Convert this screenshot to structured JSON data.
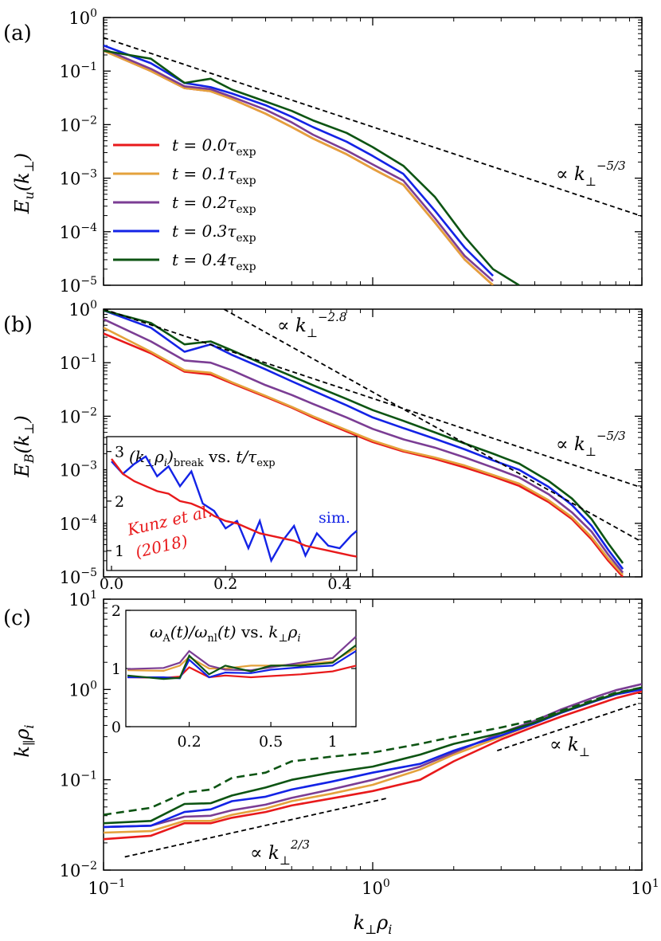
{
  "colors": {
    "t0": "#e8191b",
    "t1": "#e4a23c",
    "t2": "#7b3d94",
    "t3": "#1323e6",
    "t4": "#0d5413",
    "ref": "#000000",
    "inset_sim": "#1323e6",
    "inset_kunz": "#e8191b"
  },
  "chart_data": [
    {
      "panel": "(a)",
      "type": "line",
      "xscale": "log",
      "yscale": "log",
      "xlim": [
        0.1,
        10
      ],
      "ylim": [
        1e-05,
        1
      ],
      "ylabel": "E_u(k_⊥)",
      "yticks": [
        "10^0",
        "10^-1",
        "10^-2",
        "10^-3",
        "10^-4",
        "10^-5"
      ],
      "x": [
        0.1,
        0.15,
        0.2,
        0.25,
        0.3,
        0.4,
        0.5,
        0.6,
        0.8,
        1.0,
        1.3,
        1.7,
        2.2,
        2.8,
        3.5,
        4.2
      ],
      "series": [
        {
          "name": "t = 0.0τexp",
          "values": [
            0.24,
            0.1,
            0.048,
            0.042,
            0.03,
            0.016,
            0.009,
            0.0055,
            0.0028,
            0.0015,
            0.00075,
            0.00015,
            3e-05,
            1e-05,
            null,
            null
          ]
        },
        {
          "name": "t = 0.1τexp",
          "values": [
            0.24,
            0.1,
            0.048,
            0.042,
            0.03,
            0.016,
            0.009,
            0.0055,
            0.0028,
            0.0015,
            0.00075,
            0.00015,
            3e-05,
            1e-05,
            null,
            null
          ]
        },
        {
          "name": "t = 0.2τexp",
          "values": [
            0.26,
            0.11,
            0.052,
            0.046,
            0.033,
            0.019,
            0.011,
            0.0065,
            0.0033,
            0.0018,
            0.0009,
            0.00018,
            3.5e-05,
            1.2e-05,
            null,
            null
          ]
        },
        {
          "name": "t = 0.3τexp",
          "values": [
            0.3,
            0.14,
            0.06,
            0.05,
            0.038,
            0.023,
            0.014,
            0.009,
            0.0048,
            0.0026,
            0.0012,
            0.00025,
            5e-05,
            1.5e-05,
            null,
            null
          ]
        },
        {
          "name": "t = 0.4τexp",
          "values": [
            0.24,
            0.17,
            0.06,
            0.072,
            0.045,
            0.027,
            0.018,
            0.012,
            0.007,
            0.0038,
            0.0017,
            0.00045,
            8e-05,
            2e-05,
            1e-05,
            null
          ]
        }
      ],
      "reference_lines": [
        {
          "label": "∝ k_⊥^(-5/3)",
          "slope": -1.6667,
          "x": [
            0.1,
            10
          ],
          "y0": 0.42
        }
      ]
    },
    {
      "panel": "(b)",
      "type": "line",
      "xscale": "log",
      "yscale": "log",
      "xlim": [
        0.1,
        10
      ],
      "ylim": [
        1e-05,
        1
      ],
      "ylabel": "E_B(k_⊥)",
      "yticks": [
        "10^0",
        "10^-1",
        "10^-2",
        "10^-3",
        "10^-4",
        "10^-5"
      ],
      "x": [
        0.1,
        0.15,
        0.2,
        0.25,
        0.3,
        0.4,
        0.5,
        0.6,
        0.8,
        1.0,
        1.3,
        1.7,
        2.2,
        2.8,
        3.5,
        4.5,
        5.5,
        6.5,
        7.5,
        8.5
      ],
      "series": [
        {
          "name": "t = 0.0τexp",
          "values": [
            0.35,
            0.15,
            0.068,
            0.06,
            0.041,
            0.023,
            0.0145,
            0.0095,
            0.0052,
            0.0033,
            0.0022,
            0.0016,
            0.0011,
            0.00075,
            0.0005,
            0.00025,
            0.00012,
            5e-05,
            2e-05,
            1e-05
          ]
        },
        {
          "name": "t = 0.1τexp",
          "values": [
            0.45,
            0.16,
            0.072,
            0.065,
            0.043,
            0.024,
            0.015,
            0.01,
            0.0055,
            0.0035,
            0.0023,
            0.0017,
            0.0012,
            0.0008,
            0.00055,
            0.00027,
            0.00013,
            5.5e-05,
            2.2e-05,
            1.1e-05
          ]
        },
        {
          "name": "t = 0.2τexp",
          "values": [
            0.65,
            0.25,
            0.11,
            0.1,
            0.072,
            0.038,
            0.025,
            0.017,
            0.0095,
            0.0058,
            0.0037,
            0.0026,
            0.0017,
            0.0011,
            0.00072,
            0.00035,
            0.00016,
            7e-05,
            2.6e-05,
            1.2e-05
          ]
        },
        {
          "name": "t = 0.3τexp",
          "values": [
            0.95,
            0.45,
            0.16,
            0.22,
            0.14,
            0.075,
            0.045,
            0.03,
            0.016,
            0.0095,
            0.006,
            0.0038,
            0.0024,
            0.0015,
            0.001,
            0.00048,
            0.00022,
            9e-05,
            3.2e-05,
            1.4e-05
          ]
        },
        {
          "name": "t = 0.4τexp",
          "values": [
            0.95,
            0.55,
            0.22,
            0.25,
            0.17,
            0.09,
            0.056,
            0.038,
            0.021,
            0.013,
            0.0082,
            0.005,
            0.0031,
            0.002,
            0.0013,
            0.00062,
            0.00029,
            0.00012,
            4.2e-05,
            1.8e-05
          ]
        }
      ],
      "reference_lines": [
        {
          "label": "∝ k_⊥^(-2.8)",
          "slope": -2.8,
          "x": [
            0.28,
            10
          ],
          "y0_at_x": 1.0
        },
        {
          "label": "∝ k_⊥^(-5/3)",
          "slope": -1.6667,
          "x": [
            0.1,
            10
          ],
          "y0": 1.0
        }
      ],
      "inset": {
        "title": "(k_⊥ρ_i)_break vs. t/τ_exp",
        "xlim": [
          0,
          0.43
        ],
        "ylim": [
          0.6,
          3.3
        ],
        "xticks": [
          "0.0",
          "0.2",
          "0.4"
        ],
        "yticks": [
          "1",
          "2",
          "3"
        ],
        "labels": {
          "sim": "sim.",
          "kunz_line1": "Kunz et al.",
          "kunz_line2": "(2018)"
        },
        "t": [
          0,
          0.02,
          0.04,
          0.06,
          0.08,
          0.1,
          0.12,
          0.14,
          0.16,
          0.18,
          0.2,
          0.22,
          0.24,
          0.26,
          0.28,
          0.3,
          0.32,
          0.34,
          0.36,
          0.38,
          0.4,
          0.42,
          0.43
        ],
        "sim": [
          2.8,
          2.55,
          2.75,
          2.9,
          2.5,
          2.7,
          2.3,
          2.6,
          1.95,
          1.8,
          1.45,
          1.6,
          1.05,
          1.6,
          0.8,
          1.2,
          1.5,
          0.9,
          1.35,
          1.1,
          1.05,
          1.3,
          1.4
        ],
        "kunz": [
          2.85,
          2.55,
          2.4,
          2.3,
          2.2,
          2.15,
          2.0,
          1.95,
          1.85,
          1.7,
          1.6,
          1.55,
          1.45,
          1.35,
          1.3,
          1.25,
          1.2,
          1.1,
          1.05,
          1.0,
          0.95,
          0.9,
          0.88
        ]
      }
    },
    {
      "panel": "(c)",
      "type": "line",
      "xscale": "log",
      "yscale": "log",
      "xlim": [
        0.1,
        10
      ],
      "ylim": [
        0.01,
        10
      ],
      "xlabel": "k_⊥ρ_i",
      "ylabel": "k_∥ρ_i",
      "xticks": [
        "10^-1",
        "10^0",
        "10^1"
      ],
      "yticks": [
        "10^1",
        "10^0",
        "10^-1",
        "10^-2"
      ],
      "x": [
        0.1,
        0.15,
        0.2,
        0.25,
        0.3,
        0.4,
        0.5,
        0.7,
        1.0,
        1.5,
        2.0,
        3.0,
        4.0,
        5.0,
        6.5,
        8.0,
        10
      ],
      "series": [
        {
          "name": "t = 0.0τexp",
          "values": [
            0.022,
            0.024,
            0.033,
            0.033,
            0.038,
            0.044,
            0.052,
            0.062,
            0.075,
            0.1,
            0.16,
            0.28,
            0.39,
            0.5,
            0.65,
            0.8,
            0.95
          ]
        },
        {
          "name": "t = 0.1τexp",
          "values": [
            0.026,
            0.027,
            0.035,
            0.035,
            0.041,
            0.048,
            0.058,
            0.07,
            0.088,
            0.13,
            0.19,
            0.3,
            0.42,
            0.55,
            0.72,
            0.88,
            1.02
          ]
        },
        {
          "name": "t = 0.2τexp",
          "values": [
            0.03,
            0.031,
            0.039,
            0.04,
            0.046,
            0.053,
            0.063,
            0.078,
            0.1,
            0.14,
            0.2,
            0.33,
            0.45,
            0.6,
            0.8,
            0.98,
            1.15
          ]
        },
        {
          "name": "t = 0.3τexp",
          "values": [
            0.03,
            0.031,
            0.044,
            0.047,
            0.058,
            0.065,
            0.078,
            0.095,
            0.12,
            0.15,
            0.21,
            0.31,
            0.42,
            0.55,
            0.72,
            0.88,
            1.0
          ]
        },
        {
          "name": "t = 0.4τexp",
          "values": [
            0.033,
            0.035,
            0.054,
            0.055,
            0.067,
            0.082,
            0.1,
            0.12,
            0.14,
            0.19,
            0.25,
            0.33,
            0.43,
            0.56,
            0.73,
            0.9,
            1.05
          ]
        },
        {
          "name": "t = 0.4τexp (dashed)",
          "values": [
            0.041,
            0.049,
            0.072,
            0.078,
            0.105,
            0.12,
            0.16,
            0.18,
            0.2,
            0.25,
            0.3,
            0.38,
            0.46,
            0.58,
            0.75,
            0.92,
            1.05
          ]
        }
      ],
      "reference_lines": [
        {
          "label": "∝ k_⊥^(2/3)",
          "slope": 0.6667,
          "x": [
            0.12,
            1.15
          ],
          "y0": 0.014
        },
        {
          "label": "∝ k_⊥",
          "slope": 1,
          "x": [
            2.9,
            9.5
          ],
          "y0": 0.21
        }
      ],
      "inset": {
        "title": "ω_A(t)/ω_nl(t) vs. k_⊥ρ_i",
        "xscale": "log",
        "xlim": [
          0.1,
          1.3
        ],
        "ylim": [
          0,
          2
        ],
        "xticks": [
          "0.2",
          "0.5",
          "1"
        ],
        "yticks": [
          "0",
          "1",
          "2"
        ],
        "x": [
          0.1,
          0.15,
          0.18,
          0.2,
          0.25,
          0.3,
          0.4,
          0.5,
          0.7,
          1.0,
          1.3
        ],
        "series": [
          {
            "name": "t = 0.0τexp",
            "values": [
              0.85,
              0.84,
              0.86,
              1.02,
              0.85,
              0.88,
              0.85,
              0.87,
              0.9,
              0.95,
              1.05
            ]
          },
          {
            "name": "t = 0.1τexp",
            "values": [
              0.97,
              0.96,
              1.05,
              1.2,
              1.0,
              1.0,
              1.05,
              1.05,
              1.07,
              1.12,
              1.35
            ]
          },
          {
            "name": "t = 0.2τexp",
            "values": [
              0.99,
              1.01,
              1.1,
              1.3,
              1.05,
              0.98,
              0.97,
              1.02,
              1.1,
              1.18,
              1.55
            ]
          },
          {
            "name": "t = 0.3τexp",
            "values": [
              0.85,
              0.85,
              0.83,
              1.15,
              0.85,
              0.93,
              0.92,
              0.98,
              1.02,
              1.05,
              1.3
            ]
          },
          {
            "name": "t = 0.4τexp",
            "values": [
              0.88,
              0.82,
              0.84,
              1.22,
              0.9,
              1.05,
              0.95,
              1.05,
              1.05,
              1.1,
              1.4
            ]
          }
        ]
      }
    }
  ],
  "legend": [
    {
      "label": "t = 0.0τexp",
      "color_key": "t0"
    },
    {
      "label": "t = 0.1τexp",
      "color_key": "t1"
    },
    {
      "label": "t = 0.2τexp",
      "color_key": "t2"
    },
    {
      "label": "t = 0.3τexp",
      "color_key": "t3"
    },
    {
      "label": "t = 0.4τexp",
      "color_key": "t4"
    }
  ],
  "panel_labels": [
    "(a)",
    "(b)",
    "(c)"
  ],
  "annotations": {
    "a_slope": "∝ k⊥−5/3",
    "b_slope_steep": "∝ k⊥−2.8",
    "b_slope": "∝ k⊥−5/3",
    "c_slope_a": "∝ k⊥2/3",
    "c_slope_b": "∝ k⊥"
  }
}
